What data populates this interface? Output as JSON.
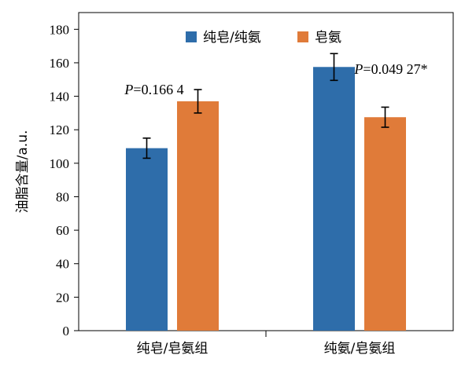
{
  "chart_data": {
    "type": "bar",
    "categories": [
      "纯皂/皂氨组",
      "纯氨/皂氨组"
    ],
    "series": [
      {
        "name": "纯皂/纯氨",
        "color": "#2E6DAA",
        "values": [
          109,
          157.5
        ],
        "errors": [
          6,
          8
        ]
      },
      {
        "name": "皂氨",
        "color": "#E07B39",
        "values": [
          137,
          127.5
        ],
        "errors": [
          7,
          6
        ]
      }
    ],
    "ylabel": "油脂含量/a.u.",
    "ylim": [
      0,
      190
    ],
    "yticks": [
      0,
      20,
      40,
      60,
      80,
      100,
      120,
      140,
      160,
      180
    ],
    "ytick_labels": [
      "0",
      "20",
      "40",
      "60",
      "80",
      "100",
      "120",
      "140",
      "160",
      "180"
    ],
    "legend_position": "top-center",
    "grid": false,
    "annotations": [
      {
        "category_index": 0,
        "italic": "P",
        "text": "=0.166 4"
      },
      {
        "category_index": 1,
        "italic": "P",
        "text": "=0.049 27*"
      }
    ]
  }
}
